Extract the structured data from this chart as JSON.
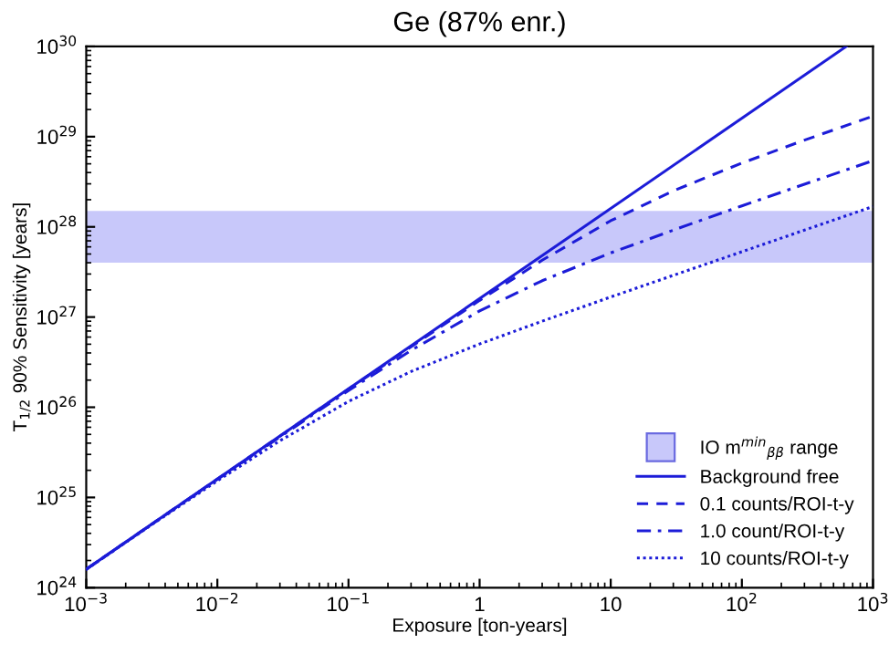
{
  "chart_data": {
    "type": "line",
    "title": "Ge (87% enr.)",
    "xlabel": "Exposure [ton-years]",
    "ylabel": "T$_{1/2}$ 90% Sensitivity [years]",
    "log": "xy",
    "xlim": [
      0.001,
      1000
    ],
    "ylim": [
      1e+24,
      1e+30
    ],
    "xticks": [
      {
        "value": 0.001,
        "label": "10$^{−3}$"
      },
      {
        "value": 0.01,
        "label": "10$^{−2}$"
      },
      {
        "value": 0.1,
        "label": "10$^{−1}$"
      },
      {
        "value": 1,
        "label": "1"
      },
      {
        "value": 10,
        "label": "10"
      },
      {
        "value": 100,
        "label": "10$^{2}$"
      },
      {
        "value": 1000,
        "label": "10$^{3}$"
      }
    ],
    "yticks": [
      {
        "value": 1e+24,
        "label": "10$^{24}$"
      },
      {
        "value": 1e+25,
        "label": "10$^{25}$"
      },
      {
        "value": 1e+26,
        "label": "10$^{26}$"
      },
      {
        "value": 1e+27,
        "label": "10$^{27}$"
      },
      {
        "value": 1e+28,
        "label": "10$^{28}$"
      },
      {
        "value": 1e+29,
        "label": "10$^{29}$"
      },
      {
        "value": 1e+30,
        "label": "10$^{30}$"
      }
    ],
    "grid": false,
    "legend": "bottom right",
    "marker": "none",
    "bands": [
      {
        "axis": "y",
        "from": 4e+27,
        "to": 1.5e+28,
        "label": "IO m$^{min}$$_{ββ}$ range",
        "color": "#c8c8fa"
      }
    ],
    "series": [
      {
        "name": "Background free",
        "color": "#1c1cd8",
        "line_style": "solid",
        "x": [
          0.001,
          625
        ],
        "values": [
          1.6e+24,
          1e+30
        ]
      },
      {
        "name": "0.1 counts/ROI-t-y",
        "color": "#1c1cd8",
        "line_style": "dashed",
        "x": [
          0.001,
          0.01,
          0.1,
          1,
          3,
          10,
          30,
          100,
          300,
          1000
        ],
        "values": [
          1.6e+24,
          1.6e+25,
          1.59e+26,
          1.53e+27,
          4.27e+27,
          1.17e+28,
          2.51e+28,
          5.1e+28,
          9.15e+28,
          1.69e+29
        ]
      },
      {
        "name": "1.0 count/ROI-t-y",
        "color": "#1c1cd8",
        "line_style": "dashdot",
        "x": [
          0.001,
          0.01,
          0.1,
          0.3,
          1,
          3,
          10,
          30,
          100,
          300,
          1000
        ],
        "values": [
          1.6e+24,
          1.59e+25,
          1.53e+26,
          4.27e+26,
          1.17e+27,
          2.53e+27,
          5.14e+27,
          9.2e+27,
          1.71e+28,
          2.97e+28,
          5.42e+28
        ]
      },
      {
        "name": "10 counts/ROI-t-y",
        "color": "#1c1cd8",
        "line_style": "dotted",
        "x": [
          0.001,
          0.003,
          0.01,
          0.03,
          0.1,
          0.3,
          1,
          3,
          10,
          30,
          100,
          300,
          1000
        ],
        "values": [
          1.59e+24,
          4.74e+24,
          1.53e+25,
          4.25e+25,
          1.16e+26,
          2.49e+26,
          5.03e+26,
          9e+26,
          1.67e+27,
          2.9e+27,
          5.3e+27,
          9.2e+27,
          1.68e+28
        ]
      }
    ]
  }
}
